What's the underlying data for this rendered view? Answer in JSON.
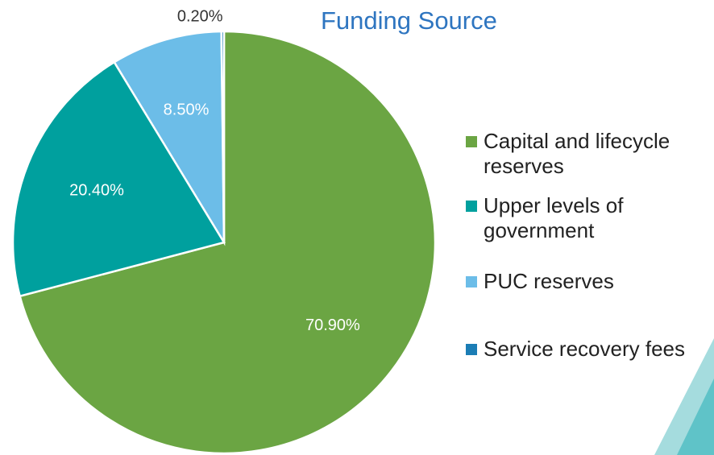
{
  "chart_data": {
    "type": "pie",
    "title": "Funding Source",
    "categories": [
      "Capital and lifecycle reserves",
      "Upper levels of government",
      "PUC reserves",
      "Service recovery fees"
    ],
    "values": [
      70.9,
      20.4,
      8.5,
      0.2
    ],
    "value_labels": [
      "70.90%",
      "20.40%",
      "8.50%",
      "0.20%"
    ],
    "colors": [
      "#6ba543",
      "#00a09e",
      "#6cbde8",
      "#1b7db5"
    ],
    "legend": "right"
  }
}
